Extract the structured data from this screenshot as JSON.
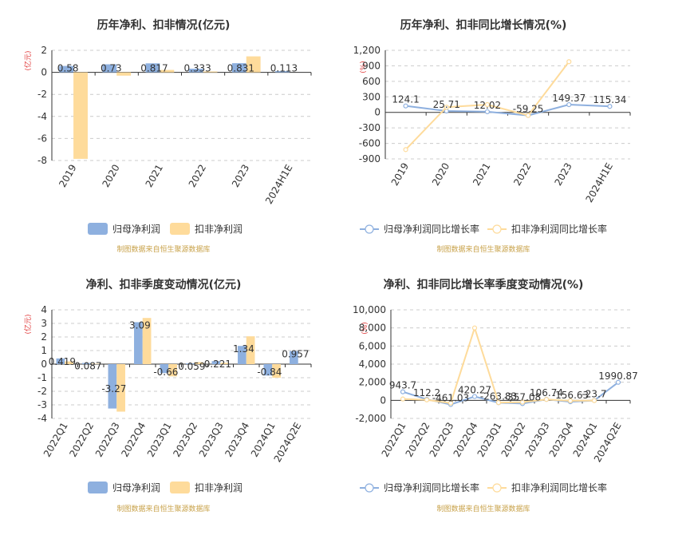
{
  "source_note": "制图数据来自恒生聚源数据库",
  "colors": {
    "series_a": "#8eb0df",
    "series_b": "#fedb9b",
    "grid": "#cccccc",
    "axis": "#333333",
    "unit_label": "#e03a3a",
    "source_note": "#c8a24a",
    "title": "#333333"
  },
  "chart_data": [
    {
      "type": "bar",
      "title": "历年净利、扣非情况(亿元)",
      "unit_label": "(亿元)",
      "categories": [
        "2019",
        "2020",
        "2021",
        "2022",
        "2023",
        "2024H1E"
      ],
      "series": [
        {
          "name": "归母净利润",
          "values": [
            0.58,
            0.73,
            0.817,
            0.333,
            0.831,
            0.113
          ]
        },
        {
          "name": "扣非净利润",
          "values": [
            -7.85,
            -0.3,
            0.22,
            0.08,
            1.45,
            null
          ]
        }
      ],
      "data_labels": [
        "0.58",
        "0.73",
        "0.817",
        "0.333",
        "0.831",
        "0.113"
      ],
      "ylim": [
        -8,
        2
      ],
      "yticks": [
        2,
        0,
        -2,
        -4,
        -6,
        -8
      ],
      "grid": true,
      "legend": "bottom"
    },
    {
      "type": "line",
      "title": "历年净利、扣非同比增长情况(%)",
      "unit_label": "(%)",
      "categories": [
        "2019",
        "2020",
        "2021",
        "2022",
        "2023",
        "2024H1E"
      ],
      "series": [
        {
          "name": "归母净利润同比增长率",
          "values": [
            124.1,
            25.71,
            12.02,
            -59.25,
            149.37,
            115.34
          ]
        },
        {
          "name": "扣非净利润同比增长率",
          "values": [
            -720,
            100,
            150,
            -60,
            980,
            null
          ]
        }
      ],
      "data_labels": [
        "124.1",
        "25.71",
        "12.02",
        "-59.25",
        "149.37",
        "115.34"
      ],
      "ylim": [
        -900,
        1200
      ],
      "yticks": [
        1200,
        900,
        600,
        300,
        0,
        -300,
        -600,
        -900
      ],
      "ytick_labels": [
        "1,200",
        "900",
        "600",
        "300",
        "0",
        "-300",
        "-600",
        "-900"
      ],
      "grid": true,
      "legend": "bottom"
    },
    {
      "type": "bar",
      "title": "净利、扣非季度变动情况(亿元)",
      "unit_label": "(亿元)",
      "categories": [
        "2022Q1",
        "2022Q2",
        "2022Q3",
        "2022Q4",
        "2023Q1",
        "2023Q2",
        "2023Q3",
        "2023Q4",
        "2024Q1",
        "2024Q2E"
      ],
      "series": [
        {
          "name": "归母净利润",
          "values": [
            0.419,
            0.087,
            -3.27,
            3.09,
            -0.66,
            0.059,
            0.221,
            1.34,
            -0.84,
            0.957
          ]
        },
        {
          "name": "扣非净利润",
          "values": [
            0.2,
            0.03,
            -3.5,
            3.4,
            -0.9,
            0.15,
            0.1,
            2.05,
            -1.0,
            null
          ]
        }
      ],
      "data_labels": [
        "0.419",
        "0.087",
        "-3.27",
        "3.09",
        "-0.66",
        "0.059",
        "0.221",
        "1.34",
        "-0.84",
        "0.957"
      ],
      "ylim": [
        -4,
        4
      ],
      "yticks": [
        4,
        3,
        2,
        1,
        0,
        -1,
        -2,
        -3,
        -4
      ],
      "grid": true,
      "legend": "bottom"
    },
    {
      "type": "line",
      "title": "净利、扣非同比增长率季度变动情况(%)",
      "unit_label": "(%)",
      "categories": [
        "2022Q1",
        "2022Q2",
        "2022Q3",
        "2022Q4",
        "2023Q1",
        "2023Q2",
        "2023Q3",
        "2023Q4",
        "2024Q1",
        "2024Q2E"
      ],
      "series": [
        {
          "name": "归母净利润同比增长率",
          "values": [
            943.7,
            112.2,
            -461.03,
            420.27,
            -263.83,
            -357.08,
            106.74,
            -156.63,
            -23.7,
            1990.87
          ]
        },
        {
          "name": "扣非净利润同比增长率",
          "values": [
            150,
            50,
            -300,
            8000,
            -250,
            -200,
            100,
            -50,
            -30,
            null
          ]
        }
      ],
      "data_labels": [
        "943.7",
        "112.2",
        "-461.03",
        "420.27",
        "-263.83",
        "-357.08",
        "106.74",
        "-156.63",
        "-23.7",
        "1990.87"
      ],
      "ylim": [
        -2000,
        10000
      ],
      "yticks": [
        10000,
        8000,
        6000,
        4000,
        2000,
        0,
        -2000
      ],
      "ytick_labels": [
        "10,000",
        "8,000",
        "6,000",
        "4,000",
        "2,000",
        "0",
        "-2,000"
      ],
      "grid": true,
      "legend": "bottom"
    }
  ]
}
